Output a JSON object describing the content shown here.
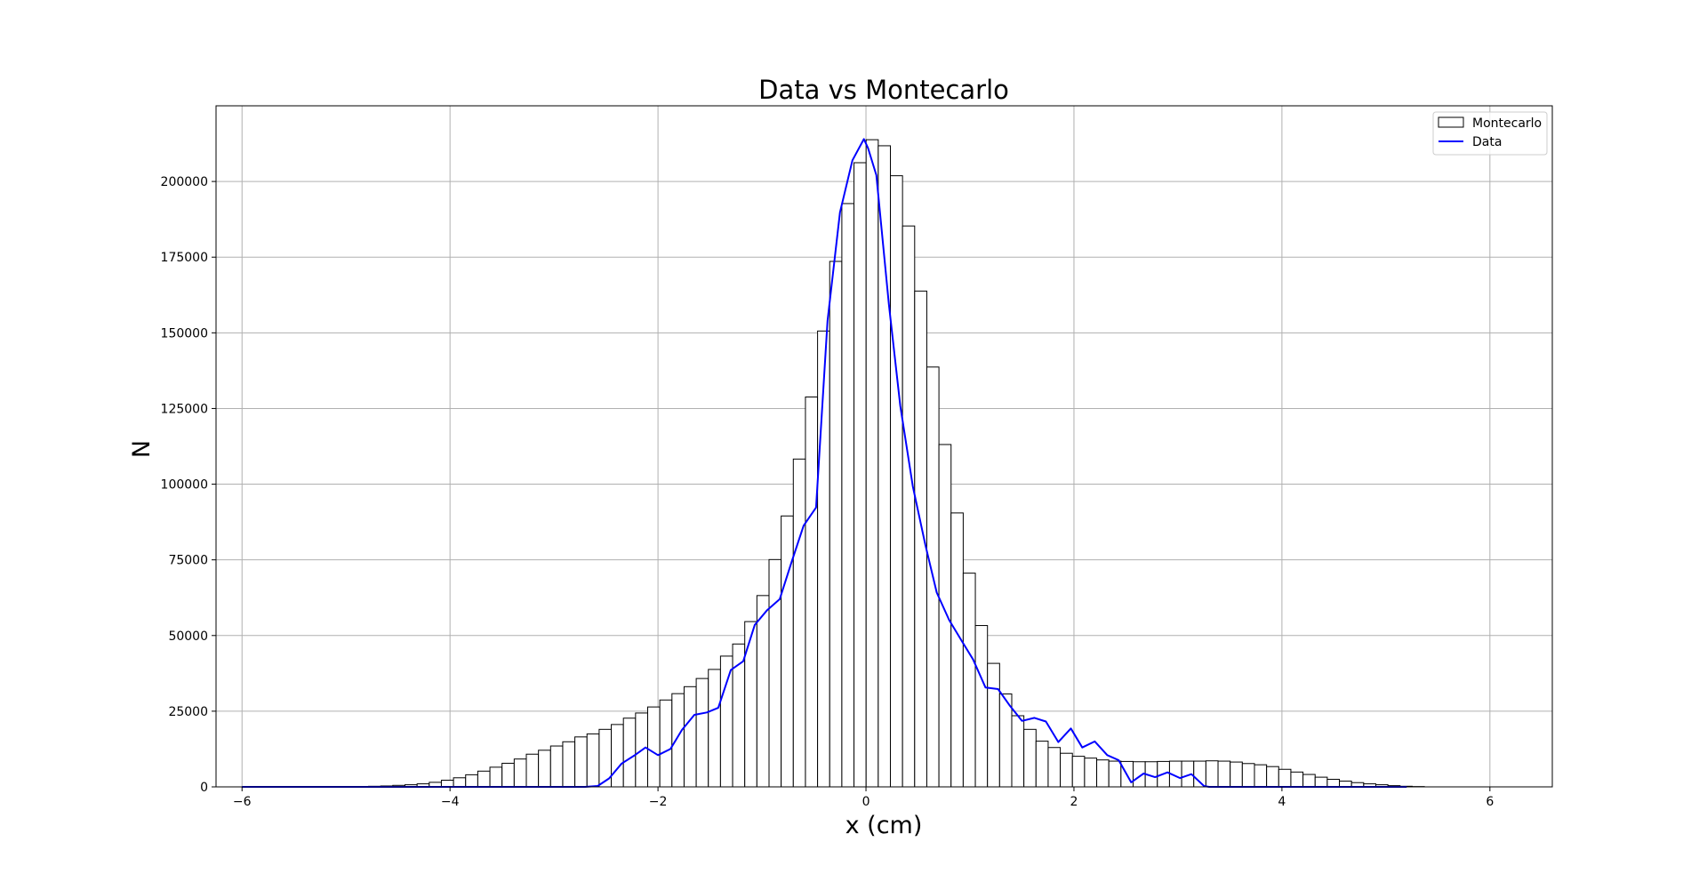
{
  "chart_data": {
    "type": "bar",
    "title": "Data vs Montecarlo",
    "xlabel": "x (cm)",
    "ylabel": "N",
    "xlim": [
      -6.25,
      6.6
    ],
    "ylim": [
      0,
      225000
    ],
    "xticks": [
      -6,
      -4,
      -2,
      0,
      2,
      4,
      6
    ],
    "xtick_labels": [
      "−6",
      "−4",
      "−2",
      "0",
      "2",
      "4",
      "6"
    ],
    "yticks": [
      0,
      25000,
      50000,
      75000,
      100000,
      125000,
      150000,
      175000,
      200000
    ],
    "ytick_labels": [
      "0",
      "25000",
      "50000",
      "75000",
      "100000",
      "125000",
      "150000",
      "175000",
      "200000"
    ],
    "grid": true,
    "legend_position": "top-right",
    "legend": [
      "Montecarlo",
      "Data"
    ],
    "colors": {
      "montecarlo_edge": "#000000",
      "montecarlo_fill": "#ffffff",
      "data_line": "#0000ff",
      "grid": "#b0b0b0"
    },
    "series": [
      {
        "name": "Montecarlo",
        "kind": "histogram",
        "bin_start": -4.9,
        "bin_width": 0.1167,
        "values": [
          100,
          200,
          300,
          500,
          700,
          1000,
          1500,
          2200,
          3000,
          4000,
          5200,
          6500,
          7800,
          9200,
          10800,
          12100,
          13500,
          14900,
          16500,
          17500,
          19000,
          20600,
          22700,
          24400,
          26400,
          28700,
          30800,
          33100,
          35800,
          38800,
          43200,
          47200,
          54600,
          63200,
          75100,
          89500,
          108300,
          128800,
          150600,
          173600,
          192700,
          206200,
          213800,
          211800,
          201900,
          185300,
          163800,
          138700,
          113100,
          90500,
          70600,
          53300,
          40800,
          30700,
          23500,
          19000,
          15100,
          13000,
          11100,
          10100,
          9500,
          8900,
          8500,
          8400,
          8300,
          8300,
          8400,
          8500,
          8500,
          8500,
          8600,
          8500,
          8200,
          7700,
          7300,
          6700,
          5800,
          4900,
          4100,
          3200,
          2500,
          1900,
          1400,
          1000,
          700,
          400,
          200,
          100
        ]
      },
      {
        "name": "Data",
        "kind": "line",
        "x": [
          -6.0,
          -2.7,
          -2.58,
          -2.47,
          -2.35,
          -2.23,
          -2.12,
          -2.0,
          -1.88,
          -1.77,
          -1.65,
          -1.53,
          -1.42,
          -1.3,
          -1.18,
          -1.07,
          -0.95,
          -0.83,
          -0.72,
          -0.6,
          -0.48,
          -0.37,
          -0.25,
          -0.13,
          -0.02,
          0.02,
          0.1,
          0.22,
          0.33,
          0.45,
          0.57,
          0.68,
          0.8,
          0.92,
          1.03,
          1.15,
          1.27,
          1.38,
          1.5,
          1.62,
          1.73,
          1.85,
          1.97,
          2.08,
          2.2,
          2.32,
          2.43,
          2.55,
          2.67,
          2.78,
          2.9,
          3.02,
          3.13,
          3.25,
          3.3,
          3.4,
          5.2
        ],
        "y": [
          0,
          0,
          300,
          2800,
          7700,
          10300,
          13000,
          10500,
          12500,
          18800,
          23800,
          24600,
          26100,
          38600,
          41500,
          53500,
          58400,
          62000,
          73800,
          86300,
          92300,
          154000,
          189800,
          207000,
          214000,
          211000,
          202100,
          159400,
          125900,
          99300,
          80100,
          64200,
          55100,
          48300,
          42100,
          32800,
          32300,
          27000,
          21800,
          22800,
          21600,
          14800,
          19300,
          13000,
          15000,
          10500,
          8800,
          1500,
          4400,
          3200,
          4800,
          2900,
          4200,
          300,
          0,
          0,
          0
        ]
      }
    ]
  }
}
